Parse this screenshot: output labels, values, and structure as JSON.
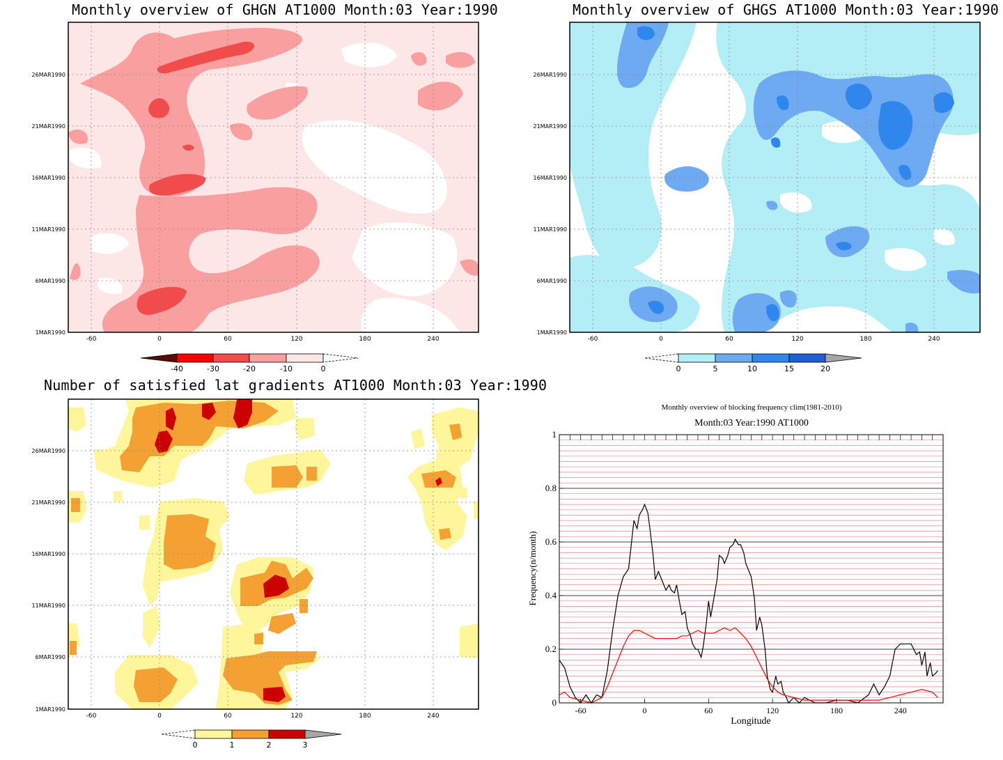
{
  "panels": {
    "ghgn_title": "Monthly overview of GHGN AT1000 Month:03 Year:1990",
    "ghgs_title": "Monthly overview of GHGS AT1000 Month:03 Year:1990",
    "lat_title": "Number of satisfied lat gradients AT1000 Month:03 Year:1990"
  },
  "hovmoller": {
    "x_ticks": [
      "-60",
      "0",
      "60",
      "120",
      "180",
      "240"
    ],
    "y_ticks": [
      "1MAR1990",
      "6MAR1990",
      "11MAR1990",
      "16MAR1990",
      "21MAR1990",
      "26MAR1990"
    ],
    "ghgn_colorbar": {
      "labels": [
        "-40",
        "-30",
        "-20",
        "-10",
        "0"
      ],
      "colors": [
        "#5a0a00",
        "#ff0000",
        "#f24b4b",
        "#f99f9f",
        "#fde6e6"
      ]
    },
    "ghgs_colorbar": {
      "labels": [
        "0",
        "5",
        "10",
        "15",
        "20"
      ],
      "colors": [
        "#b3edf5",
        "#6eaaf2",
        "#2f86ec",
        "#1e61d4",
        "#a6a6a6"
      ]
    },
    "lat_colorbar": {
      "labels": [
        "0",
        "1",
        "2",
        "3"
      ],
      "colors": [
        "#fff59a",
        "#f5a033",
        "#cc0000",
        "#a6a6a6"
      ]
    }
  },
  "chart_data": [
    {
      "type": "heatmap",
      "title": "Monthly overview of GHGN AT1000 Month:03 Year:1990",
      "xlim": [
        -80,
        280
      ],
      "ylim": [
        "1MAR1990",
        "31MAR1990"
      ],
      "color_levels": [
        -40,
        -30,
        -20,
        -10,
        0
      ]
    },
    {
      "type": "heatmap",
      "title": "Monthly overview of GHGS AT1000 Month:03 Year:1990",
      "xlim": [
        -80,
        280
      ],
      "ylim": [
        "1MAR1990",
        "31MAR1990"
      ],
      "color_levels": [
        0,
        5,
        10,
        15,
        20
      ]
    },
    {
      "type": "heatmap",
      "title": "Number of satisfied lat gradients AT1000 Month:03 Year:1990",
      "xlim": [
        -80,
        280
      ],
      "ylim": [
        "1MAR1990",
        "31MAR1990"
      ],
      "color_levels": [
        0,
        1,
        2,
        3
      ]
    },
    {
      "type": "line",
      "title": "Monthly overview of blocking frequency clim(1981-2010)",
      "subtitle": "Month:03 Year:1990  AT1000",
      "xlabel": "Longitude",
      "ylabel": "Frequency(n/month)",
      "xlim": [
        -80,
        280
      ],
      "ylim": [
        0,
        1
      ],
      "x_tick_labels": [
        "-60",
        "0",
        "60",
        "120",
        "180",
        "240"
      ],
      "y_tick_labels": [
        "0",
        "0.2",
        "0.4",
        "0.6",
        "0.8",
        "1"
      ],
      "series": [
        {
          "color": "#000000",
          "x": [
            -80,
            -75,
            -70,
            -65,
            -60,
            -55,
            -50,
            -45,
            -40,
            -35,
            -30,
            -25,
            -20,
            -15,
            -10,
            -7,
            -5,
            -2,
            0,
            3,
            5,
            8,
            10,
            13,
            15,
            18,
            20,
            23,
            25,
            28,
            30,
            33,
            35,
            38,
            40,
            43,
            45,
            48,
            50,
            53,
            55,
            58,
            60,
            62,
            65,
            68,
            70,
            73,
            75,
            78,
            80,
            83,
            85,
            88,
            90,
            93,
            95,
            98,
            100,
            103,
            105,
            108,
            110,
            113,
            115,
            118,
            120,
            123,
            125,
            128,
            130,
            133,
            135,
            140,
            145,
            150,
            160,
            170,
            180,
            190,
            200,
            210,
            215,
            220,
            225,
            230,
            235,
            240,
            245,
            250,
            255,
            258,
            260,
            263,
            265,
            268,
            270,
            273,
            275
          ],
          "y": [
            0.16,
            0.13,
            0.06,
            0.02,
            0.0,
            0.03,
            0.0,
            0.03,
            0.02,
            0.12,
            0.27,
            0.4,
            0.47,
            0.5,
            0.68,
            0.65,
            0.7,
            0.72,
            0.74,
            0.71,
            0.65,
            0.55,
            0.46,
            0.49,
            0.47,
            0.44,
            0.42,
            0.44,
            0.42,
            0.41,
            0.44,
            0.37,
            0.33,
            0.34,
            0.28,
            0.25,
            0.22,
            0.2,
            0.2,
            0.17,
            0.21,
            0.3,
            0.38,
            0.32,
            0.39,
            0.46,
            0.55,
            0.54,
            0.52,
            0.55,
            0.58,
            0.59,
            0.61,
            0.59,
            0.59,
            0.56,
            0.52,
            0.49,
            0.47,
            0.39,
            0.27,
            0.32,
            0.29,
            0.2,
            0.1,
            0.05,
            0.04,
            0.1,
            0.07,
            0.08,
            0.04,
            0.02,
            0.0,
            0.02,
            0.0,
            0.02,
            0.0,
            0.0,
            0.01,
            0.01,
            0.0,
            0.03,
            0.07,
            0.03,
            0.06,
            0.1,
            0.2,
            0.22,
            0.22,
            0.22,
            0.18,
            0.19,
            0.14,
            0.19,
            0.1,
            0.15,
            0.1,
            0.11,
            0.12
          ]
        },
        {
          "color": "#ff0000",
          "x": [
            -80,
            -75,
            -70,
            -60,
            -50,
            -40,
            -35,
            -30,
            -25,
            -20,
            -15,
            -10,
            -5,
            0,
            5,
            10,
            15,
            20,
            25,
            30,
            35,
            40,
            45,
            50,
            55,
            60,
            65,
            70,
            75,
            80,
            85,
            90,
            95,
            100,
            105,
            110,
            115,
            120,
            125,
            130,
            140,
            150,
            160,
            170,
            180,
            190,
            200,
            210,
            220,
            230,
            240,
            250,
            260,
            270,
            275
          ],
          "y": [
            0.03,
            0.04,
            0.02,
            0.01,
            0.0,
            0.02,
            0.06,
            0.11,
            0.16,
            0.21,
            0.25,
            0.27,
            0.27,
            0.26,
            0.25,
            0.24,
            0.24,
            0.24,
            0.24,
            0.24,
            0.25,
            0.25,
            0.26,
            0.27,
            0.26,
            0.26,
            0.26,
            0.27,
            0.28,
            0.27,
            0.28,
            0.26,
            0.24,
            0.21,
            0.17,
            0.13,
            0.09,
            0.06,
            0.04,
            0.03,
            0.02,
            0.01,
            0.01,
            0.01,
            0.01,
            0.01,
            0.01,
            0.01,
            0.01,
            0.02,
            0.03,
            0.04,
            0.05,
            0.04,
            0.02
          ]
        }
      ]
    }
  ]
}
